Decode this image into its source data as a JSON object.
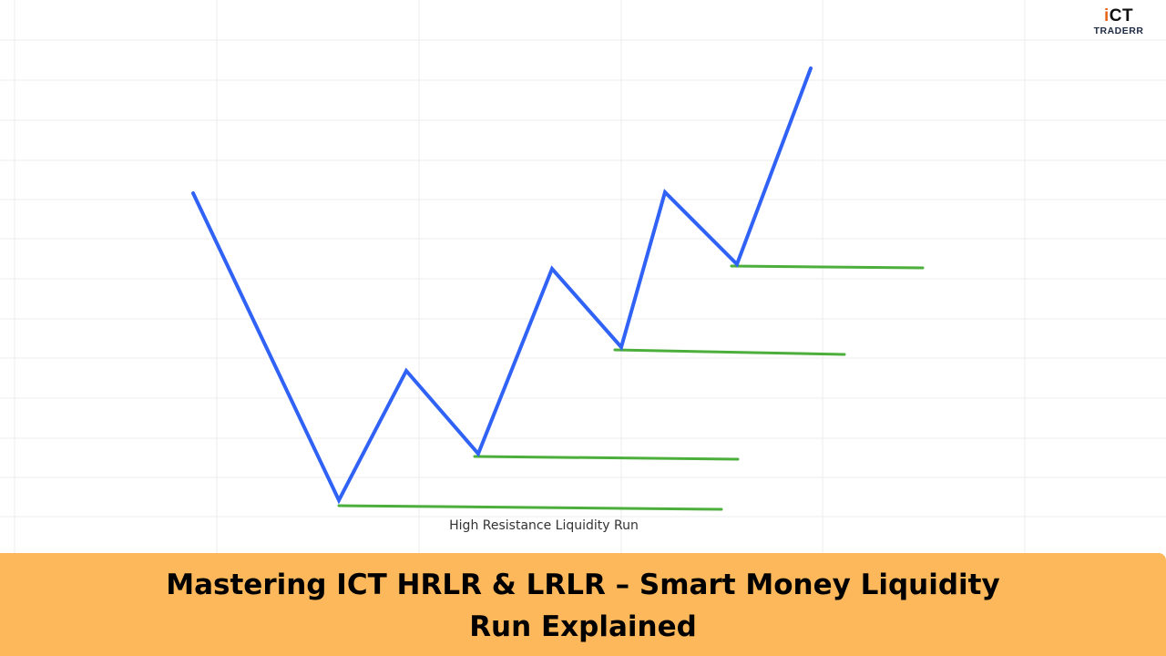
{
  "logo": {
    "mark_prefix": "i",
    "mark_rest": "CT",
    "wordmark": "TRADERR",
    "accent_color": "#e8661a"
  },
  "diagram": {
    "caption": "High Resistance Liquidity Run",
    "price_line_color": "#2f62f5",
    "liquidity_line_color": "#4caf3c",
    "grid_color": "#ececec"
  },
  "title": {
    "line1": "Mastering ICT HRLR & LRLR – Smart Money Liquidity",
    "line2": "Run Explained",
    "banner_color": "#fcb85b"
  }
}
